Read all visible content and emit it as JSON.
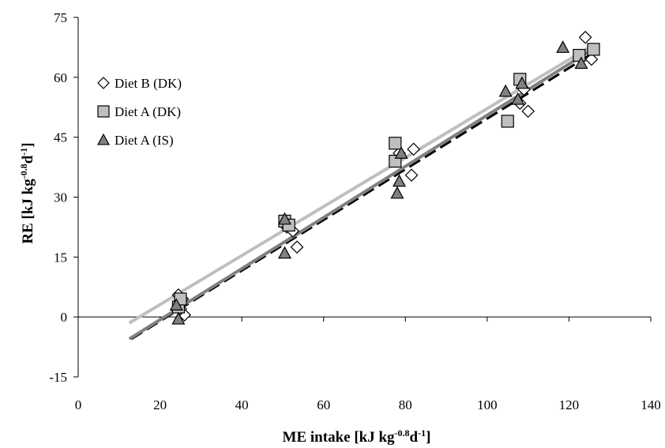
{
  "chart_data": {
    "type": "scatter",
    "title": "",
    "xlabel": {
      "base": "ME intake [kJ kg",
      "sup1": "-0.8",
      "mid": "d",
      "sup2": "-1",
      "end": "]"
    },
    "ylabel": {
      "base": "RE [kJ kg",
      "sup1": "-0.8",
      "mid": "d",
      "sup2": "-1",
      "end": "]"
    },
    "xlim": [
      0,
      140
    ],
    "ylim": [
      -15,
      75
    ],
    "xticks": [
      "0",
      "20",
      "40",
      "60",
      "80",
      "100",
      "120",
      "140"
    ],
    "yticks": [
      "-15",
      "0",
      "15",
      "30",
      "45",
      "60",
      "75"
    ],
    "grid": false,
    "legend_position": "top-left",
    "series": [
      {
        "name": "Diet B (DK)",
        "marker": "diamond",
        "fill": "#ffffff",
        "stroke": "#000000",
        "points": [
          [
            24.5,
            5.5
          ],
          [
            25.5,
            4.5
          ],
          [
            26,
            0.5
          ],
          [
            25,
            2.0
          ],
          [
            51,
            22.5
          ],
          [
            52.5,
            21.5
          ],
          [
            53.5,
            17.5
          ],
          [
            78.5,
            41.0
          ],
          [
            82,
            42.0
          ],
          [
            81.5,
            35.5
          ],
          [
            108,
            53.5
          ],
          [
            110,
            51.5
          ],
          [
            109,
            57.0
          ],
          [
            124,
            70.0
          ],
          [
            125.5,
            64.5
          ]
        ]
      },
      {
        "name": "Diet A (DK)",
        "marker": "square",
        "fill": "#bfbfbf",
        "stroke": "#000000",
        "points": [
          [
            24.5,
            2.5
          ],
          [
            25,
            4.5
          ],
          [
            50.5,
            24.0
          ],
          [
            51.5,
            23.0
          ],
          [
            77.5,
            43.5
          ],
          [
            77.5,
            39.0
          ],
          [
            105,
            49.0
          ],
          [
            108,
            59.5
          ],
          [
            122.5,
            65.5
          ],
          [
            126,
            67.0
          ]
        ]
      },
      {
        "name": "Diet A (IS)",
        "marker": "triangle",
        "fill": "#808080",
        "stroke": "#000000",
        "points": [
          [
            24.5,
            -0.5
          ],
          [
            24,
            3.0
          ],
          [
            50.5,
            24.5
          ],
          [
            50.5,
            16.0
          ],
          [
            78.5,
            34.0
          ],
          [
            78,
            31.0
          ],
          [
            79,
            41.0
          ],
          [
            104.5,
            56.5
          ],
          [
            107.5,
            54.5
          ],
          [
            108.5,
            58.5
          ],
          [
            118.5,
            67.5
          ],
          [
            123,
            63.5
          ]
        ]
      }
    ],
    "fit_lines": [
      {
        "x": [
          13,
          125
        ],
        "y": [
          -5.5,
          65.5
        ],
        "color": "#000000",
        "dash": "16,7",
        "width": 3
      },
      {
        "x": [
          12.5,
          125
        ],
        "y": [
          -5.5,
          66.5
        ],
        "color": "#808080",
        "dash": "",
        "width": 4
      },
      {
        "x": [
          12.5,
          125
        ],
        "y": [
          -1.5,
          67.5
        ],
        "color": "#bfbfbf",
        "dash": "",
        "width": 4
      }
    ]
  }
}
